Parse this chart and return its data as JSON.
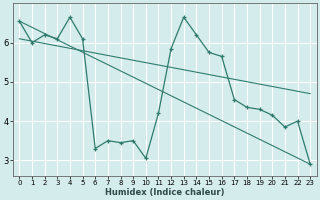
{
  "xlabel": "Humidex (Indice chaleur)",
  "bg_color": "#d5ecec",
  "line_color": "#2e7b6e",
  "grid_color": "#ffffff",
  "xlim": [
    -0.5,
    23.5
  ],
  "ylim": [
    2.6,
    7.0
  ],
  "yticks": [
    3,
    4,
    5,
    6
  ],
  "xticks": [
    0,
    1,
    2,
    3,
    4,
    5,
    6,
    7,
    8,
    9,
    10,
    11,
    12,
    13,
    14,
    15,
    16,
    17,
    18,
    19,
    20,
    21,
    22,
    23
  ],
  "series_main": {
    "x": [
      0,
      1,
      2,
      3,
      4,
      5,
      6,
      7,
      8,
      9,
      10,
      11,
      12,
      13,
      14,
      15,
      16,
      17,
      18,
      19,
      20,
      21,
      22,
      23
    ],
    "y": [
      6.55,
      6.0,
      6.2,
      6.1,
      6.65,
      6.1,
      3.3,
      3.5,
      3.45,
      3.5,
      3.05,
      4.2,
      5.85,
      6.65,
      6.2,
      5.75,
      5.65,
      4.55,
      4.35,
      4.3,
      4.15,
      3.85,
      4.0,
      2.9
    ]
  },
  "series_trend1": {
    "x": [
      0,
      23
    ],
    "y": [
      6.55,
      2.9
    ]
  },
  "series_trend2": {
    "x": [
      0,
      23
    ],
    "y": [
      6.1,
      4.7
    ]
  }
}
